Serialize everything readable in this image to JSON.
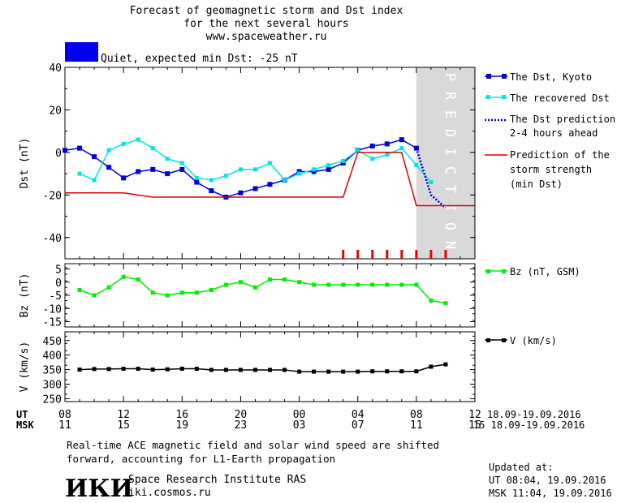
{
  "header": {
    "title_line1": "Forecast of geomagnetic storm and Dst index",
    "title_line2": "for the next several hours",
    "title_line3": "www.spaceweather.ru",
    "status_color": "#0000ee",
    "status_text": "Quiet, expected min Dst: -25 nT"
  },
  "legend": {
    "dst_kyoto": "The Dst, Kyoto",
    "dst_recovered": "The recovered Dst",
    "dst_prediction_l1": "The Dst prediction",
    "dst_prediction_l2": "2-4 hours ahead",
    "storm_l1": "Prediction of the",
    "storm_l2": "storm strength",
    "storm_l3": "(min Dst)",
    "bz": "Bz (nT, GSM)",
    "v": "V (km/s)"
  },
  "prediction_band_text": "PREDICTION",
  "time_axis": {
    "ut_label": "UT",
    "msk_label": "MSK",
    "ut_ticks": [
      "08",
      "12",
      "16",
      "20",
      "00",
      "04",
      "08",
      "12"
    ],
    "msk_ticks": [
      "11",
      "15",
      "19",
      "23",
      "03",
      "07",
      "11",
      "15"
    ],
    "date_range_ut": "18.09-19.09.2016",
    "date_range_msk": "15 18.09-19.09.2016"
  },
  "footer": {
    "note_line1": "Real-time ACE magnetic field and solar wind speed are shifted",
    "note_line2": "forward, accounting for L1-Earth propagation",
    "logo": "ИКИ",
    "institute": "Space Research Institute RAS",
    "site": "iki.cosmos.ru",
    "updated_label": "Updated at:",
    "updated_ut": "UT  08:04, 19.09.2016",
    "updated_msk": "MSK 11:04, 19.09.2016"
  },
  "chart_data": [
    {
      "type": "line",
      "ylabel": "Dst (nT)",
      "ylim": [
        -50,
        40
      ],
      "yticks": [
        40,
        20,
        0,
        -20,
        -40
      ],
      "x_unit": "hours since 08 UT 18.09",
      "xlim": [
        0,
        28
      ],
      "prediction_start": 24,
      "series": [
        {
          "name": "The Dst, Kyoto",
          "color": "#0000dd",
          "x": [
            0,
            1,
            2,
            3,
            4,
            5,
            6,
            7,
            8,
            9,
            10,
            11,
            12,
            13,
            14,
            15,
            16,
            17,
            18,
            19,
            20,
            21,
            22,
            23,
            24
          ],
          "y": [
            1,
            2,
            -2,
            -7,
            -12,
            -9,
            -8,
            -10,
            -8,
            -14,
            -18,
            -21,
            -19,
            -17,
            -15,
            -13,
            -9,
            -9,
            -8,
            -5,
            1,
            3,
            4,
            6,
            2
          ]
        },
        {
          "name": "The recovered Dst",
          "color": "#00e5e5",
          "x": [
            1,
            2,
            3,
            4,
            5,
            6,
            7,
            8,
            9,
            10,
            11,
            12,
            13,
            14,
            15,
            16,
            17,
            18,
            19,
            20,
            21,
            22,
            23,
            24,
            25
          ],
          "y": [
            -10,
            -13,
            1,
            4,
            6,
            2,
            -3,
            -5,
            -12,
            -13,
            -11,
            -8,
            -8,
            -5,
            -13,
            -10,
            -8,
            -6,
            -4,
            1,
            -3,
            -1,
            2,
            -6,
            -14
          ]
        },
        {
          "name": "The Dst prediction 2-4 hours ahead",
          "color": "#0000dd",
          "dashed": true,
          "x": [
            24,
            25,
            26
          ],
          "y": [
            2,
            -20,
            -26
          ]
        },
        {
          "name": "Prediction of the storm strength (min Dst)",
          "color": "#dd0000",
          "x": [
            0,
            4,
            5,
            6,
            11,
            19,
            20,
            21,
            22,
            23,
            24,
            28
          ],
          "y": [
            -19,
            -19,
            -20,
            -21,
            -21,
            -21,
            0,
            0,
            0,
            0,
            -25,
            -25
          ]
        }
      ],
      "markers_x": [
        19,
        20,
        21,
        22,
        23,
        24,
        25,
        26
      ]
    },
    {
      "type": "line",
      "ylabel": "Bz (nT)",
      "ylim": [
        -17,
        7
      ],
      "yticks": [
        5,
        0,
        -5,
        -10,
        -15
      ],
      "series": [
        {
          "name": "Bz (nT, GSM)",
          "color": "#00ee00",
          "x": [
            1,
            2,
            3,
            4,
            5,
            6,
            7,
            8,
            9,
            10,
            11,
            12,
            13,
            14,
            15,
            16,
            17,
            18,
            19,
            20,
            21,
            22,
            23,
            24,
            25,
            26
          ],
          "y": [
            -3,
            -5,
            -2,
            2,
            1,
            -4,
            -5,
            -4,
            -4,
            -3,
            -1,
            0,
            -2,
            1,
            1,
            0,
            -1,
            -1,
            -1,
            -1,
            -1,
            -1,
            -1,
            -1,
            -7,
            -8
          ]
        }
      ]
    },
    {
      "type": "line",
      "ylabel": "V (km/s)",
      "ylim": [
        240,
        480
      ],
      "yticks": [
        450,
        400,
        350,
        300,
        250
      ],
      "series": [
        {
          "name": "V (km/s)",
          "color": "#000000",
          "x": [
            1,
            2,
            3,
            4,
            5,
            6,
            7,
            8,
            9,
            10,
            11,
            12,
            13,
            14,
            15,
            16,
            17,
            18,
            19,
            20,
            21,
            22,
            23,
            24,
            25,
            26
          ],
          "y": [
            350,
            352,
            352,
            353,
            353,
            350,
            351,
            353,
            353,
            349,
            349,
            349,
            349,
            349,
            349,
            343,
            343,
            343,
            343,
            343,
            344,
            344,
            344,
            344,
            360,
            368
          ]
        }
      ]
    }
  ]
}
